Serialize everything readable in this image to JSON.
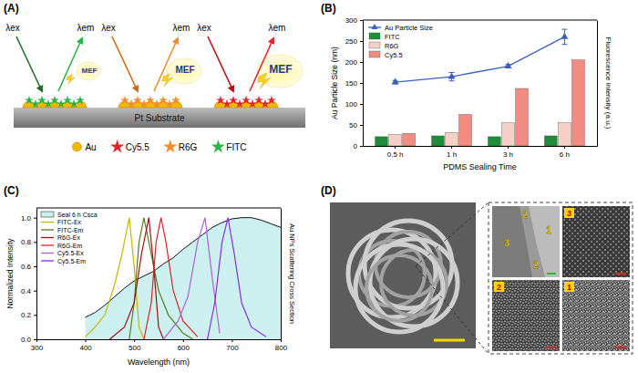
{
  "panel_letters": [
    "(A)",
    "(B)",
    "(C)",
    "(D)"
  ],
  "diagram": {
    "substrate": "Pt Substrate",
    "groups": [
      {
        "excitation": "λex",
        "emission": "λem",
        "label": "MEF"
      },
      {
        "excitation": "λex",
        "emission": "λem",
        "label": "MEF"
      },
      {
        "excitation": "λex",
        "emission": "λem",
        "label": "MEF"
      }
    ],
    "legend": [
      "Au",
      "Cy5.5",
      "R6G",
      "FITC"
    ]
  },
  "chart_data": [
    {
      "type": "bar",
      "x_label": "PDMS Sealing Time",
      "y_label": "Au Particle Size (nm)",
      "y2_label": "Fluorescence Intensity (a.u.)",
      "categories": [
        "0.5 h",
        "1 h",
        "3 h",
        "6 h"
      ],
      "ylim": [
        0,
        300
      ],
      "yticks": [
        0,
        50,
        100,
        150,
        200,
        250,
        300
      ],
      "y2lim": [
        0,
        300
      ],
      "y2ticks": [],
      "legend": "upper left",
      "series": [
        {
          "name": "Au Particle Size",
          "type": "line",
          "color": "#3b5fc0",
          "marker": "triangle",
          "values": [
            152,
            165,
            190,
            260
          ],
          "errors": [
            4,
            10,
            4,
            18
          ]
        },
        {
          "name": "FITC",
          "type": "bar",
          "axis": "y2",
          "color": "#1e8c3a",
          "values": [
            22,
            24,
            22,
            24
          ]
        },
        {
          "name": "R6G",
          "type": "bar",
          "axis": "y2",
          "color": "#f6d0c4",
          "values": [
            27,
            32,
            55,
            55
          ]
        },
        {
          "name": "Cy5.5",
          "type": "bar",
          "axis": "y2",
          "color": "#f28b82",
          "values": [
            30,
            75,
            137,
            205
          ]
        }
      ]
    },
    {
      "type": "line",
      "x_label": "Wavelength (nm)",
      "y_label": "Normalized Intensity",
      "y2_label": "Au NPs Scattering Cross Section",
      "xlim": [
        300,
        800
      ],
      "xticks": [
        300,
        400,
        500,
        600,
        700,
        800
      ],
      "ylim": [
        0,
        1.08
      ],
      "yticks": [
        {
          "value": 0,
          "label": "0.0"
        },
        0.2,
        0.4,
        0.6,
        0.8,
        {
          "value": 1,
          "label": "1.0"
        }
      ],
      "y2lim": [
        0,
        1.08
      ],
      "y2ticks": [],
      "legend": "upper left",
      "series": [
        {
          "name": "Seal 6 h Csca",
          "type": "area",
          "axis": "y2",
          "color": "#cdf1f1",
          "x": [
            400,
            420,
            440,
            460,
            480,
            500,
            520,
            540,
            560,
            580,
            600,
            620,
            640,
            660,
            680,
            700,
            720,
            740,
            760,
            780,
            800
          ],
          "values": [
            0.18,
            0.22,
            0.28,
            0.35,
            0.42,
            0.48,
            0.52,
            0.56,
            0.62,
            0.67,
            0.74,
            0.8,
            0.86,
            0.92,
            0.96,
            0.99,
            1.0,
            1.0,
            0.98,
            0.95,
            0.92
          ]
        },
        {
          "name": "FITC-Ex",
          "type": "line",
          "color": "#c8b400",
          "x": [
            400,
            420,
            440,
            460,
            475,
            490,
            500,
            510,
            520
          ],
          "values": [
            0.02,
            0.1,
            0.2,
            0.45,
            0.7,
            1.0,
            0.6,
            0.1,
            0.0
          ]
        },
        {
          "name": "FITC-Em",
          "type": "line",
          "color": "#5a7a20",
          "x": [
            490,
            500,
            510,
            520,
            530,
            550,
            570,
            600,
            620
          ],
          "values": [
            0.0,
            0.3,
            0.8,
            1.0,
            0.8,
            0.4,
            0.2,
            0.05,
            0.0
          ]
        },
        {
          "name": "R6G-Ex",
          "type": "line",
          "color": "#a01010",
          "x": [
            450,
            480,
            500,
            515,
            530,
            540,
            550,
            560
          ],
          "values": [
            0.0,
            0.1,
            0.3,
            0.7,
            1.0,
            0.6,
            0.1,
            0.0
          ]
        },
        {
          "name": "R6G-Em",
          "type": "line",
          "color": "#e0202a",
          "x": [
            520,
            535,
            545,
            555,
            565,
            580,
            600,
            630
          ],
          "values": [
            0.0,
            0.3,
            0.8,
            1.0,
            0.8,
            0.4,
            0.15,
            0.02
          ]
        },
        {
          "name": "Cy5.5-Ex",
          "type": "line",
          "color": "#b060d0",
          "x": [
            560,
            590,
            610,
            630,
            645,
            660,
            675
          ],
          "values": [
            0.0,
            0.15,
            0.35,
            0.8,
            1.0,
            0.5,
            0.05
          ]
        },
        {
          "name": "Cy5.5-Em",
          "type": "line",
          "color": "#8a2be2",
          "x": [
            650,
            665,
            680,
            692,
            705,
            720,
            740,
            770
          ],
          "values": [
            0.0,
            0.3,
            0.8,
            1.0,
            0.7,
            0.3,
            0.1,
            0.02
          ]
        }
      ]
    }
  ],
  "images": {
    "overview_labels": [
      "2",
      "1",
      "3",
      "2"
    ],
    "zoom_labels": [
      "3",
      "2",
      "1"
    ]
  }
}
